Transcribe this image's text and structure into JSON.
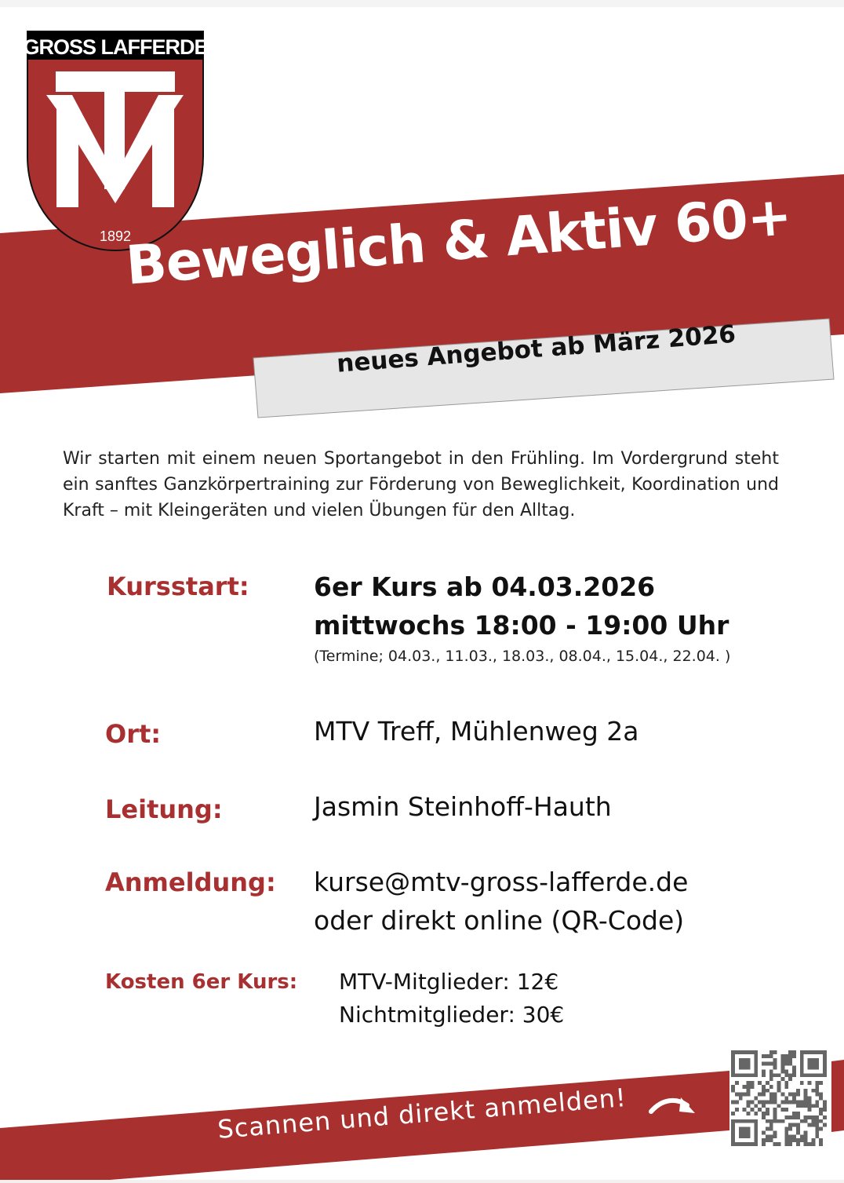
{
  "logo": {
    "name": "GROSS LAFFERDE",
    "year": "1892",
    "monogram": "MTV"
  },
  "title": "Beweglich & Aktiv 60+",
  "subtitle": "neues Angebot ab März 2026",
  "intro": "Wir starten mit einem neuen Sportangebot in den Frühling. Im Vordergrund steht ein sanftes Ganzkörpertraining zur Förderung von Beweglichkeit, Koordination und Kraft – mit Kleingeräten und vielen Übungen für den Alltag.",
  "details": {
    "kursstart_label": "Kursstart:",
    "kursstart_line1": "6er Kurs ab 04.03.2026",
    "kursstart_line2": "mittwochs 18:00 - 19:00 Uhr",
    "kursstart_dates": "(Termine; 04.03., 11.03., 18.03., 08.04., 15.04., 22.04. )",
    "ort_label": "Ort:",
    "ort_value": "MTV Treff, Mühlenweg 2a",
    "leitung_label": "Leitung:",
    "leitung_value": "Jasmin Steinhoff-Hauth",
    "anmeldung_label": "Anmeldung:",
    "anmeldung_email": "kurse@mtv-gross-lafferde.de",
    "anmeldung_online": "oder direkt online (QR-Code)",
    "kosten_label": "Kosten 6er Kurs:",
    "kosten_members": "MTV-Mitglieder: 12€",
    "kosten_nonmembers": "Nichtmitglieder: 30€"
  },
  "cta": "Scannen und direkt anmelden!",
  "colors": {
    "brand_red": "#a8302e",
    "grey_box": "#e6e6e6"
  }
}
